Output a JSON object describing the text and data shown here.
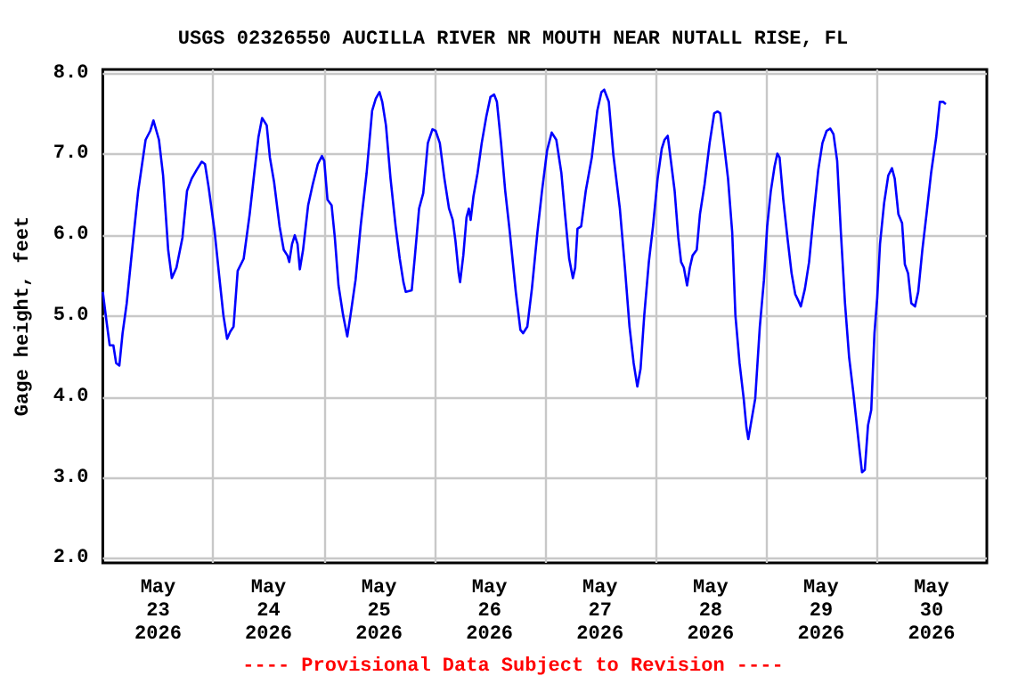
{
  "chart_data": {
    "type": "line",
    "title": "USGS 02326550 AUCILLA RIVER NR MOUTH NEAR NUTALL RISE, FL",
    "ylabel": "Gage height, feet",
    "annotations": [
      "---- Provisional Data Subject to Revision ----"
    ],
    "xlim": [
      "2026-05-23T00:00",
      "2026-05-31T00:00"
    ],
    "xticks": [
      {
        "value": "2026-05-23T12:00",
        "label": "May\n23\n2026"
      },
      {
        "value": "2026-05-24T00:00",
        "label": null
      },
      {
        "value": "2026-05-24T12:00",
        "label": "May\n24\n2026"
      },
      {
        "value": "2026-05-25T00:00",
        "label": null
      },
      {
        "value": "2026-05-25T12:00",
        "label": "May\n25\n2026"
      },
      {
        "value": "2026-05-26T00:00",
        "label": null
      },
      {
        "value": "2026-05-26T12:00",
        "label": "May\n26\n2026"
      },
      {
        "value": "2026-05-27T00:00",
        "label": null
      },
      {
        "value": "2026-05-27T12:00",
        "label": "May\n27\n2026"
      },
      {
        "value": "2026-05-28T00:00",
        "label": null
      },
      {
        "value": "2026-05-28T12:00",
        "label": "May\n28\n2026"
      },
      {
        "value": "2026-05-29T00:00",
        "label": null
      },
      {
        "value": "2026-05-29T12:00",
        "label": "May\n29\n2026"
      },
      {
        "value": "2026-05-30T00:00",
        "label": null
      },
      {
        "value": "2026-05-30T12:00",
        "label": "May\n30\n2026"
      }
    ],
    "ylim": [
      1.95,
      8.05
    ],
    "yticks": [
      {
        "value": 2,
        "label": "2.0"
      },
      {
        "value": 3,
        "label": "3.0"
      },
      {
        "value": 4,
        "label": "4.0"
      },
      {
        "value": 5,
        "label": "5.0"
      },
      {
        "value": 6,
        "label": "6.0"
      },
      {
        "value": 7,
        "label": "7.0"
      },
      {
        "value": 8,
        "label": "8.0"
      }
    ],
    "grid": true,
    "marker": "none",
    "line_style": "solid",
    "series": [
      {
        "color": "#0000ff",
        "x": [
          "2026-05-23T00:00",
          "2026-05-23T00:48",
          "2026-05-23T01:30",
          "2026-05-23T02:18",
          "2026-05-23T02:54",
          "2026-05-23T03:36",
          "2026-05-23T04:18",
          "2026-05-23T05:12",
          "2026-05-23T06:30",
          "2026-05-23T07:42",
          "2026-05-23T09:18",
          "2026-05-23T10:18",
          "2026-05-23T11:00",
          "2026-05-23T12:12",
          "2026-05-23T13:06",
          "2026-05-23T14:12",
          "2026-05-23T15:00",
          "2026-05-23T16:00",
          "2026-05-23T17:18",
          "2026-05-23T18:18",
          "2026-05-23T19:18",
          "2026-05-23T20:24",
          "2026-05-23T21:30",
          "2026-05-23T22:12",
          "2026-05-23T23:00",
          "2026-05-24T00:18",
          "2026-05-24T01:18",
          "2026-05-24T02:12",
          "2026-05-24T03:00",
          "2026-05-24T03:42",
          "2026-05-24T04:24",
          "2026-05-24T05:18",
          "2026-05-24T06:36",
          "2026-05-24T07:54",
          "2026-05-24T08:54",
          "2026-05-24T09:48",
          "2026-05-24T10:36",
          "2026-05-24T11:36",
          "2026-05-24T12:18",
          "2026-05-24T13:12",
          "2026-05-24T14:24",
          "2026-05-24T15:18",
          "2026-05-24T16:06",
          "2026-05-24T16:30",
          "2026-05-24T17:06",
          "2026-05-24T17:42",
          "2026-05-24T18:18",
          "2026-05-24T18:48",
          "2026-05-24T19:30",
          "2026-05-24T20:36",
          "2026-05-24T21:36",
          "2026-05-24T22:42",
          "2026-05-24T23:36",
          "2026-05-25T00:06",
          "2026-05-25T00:48",
          "2026-05-25T01:42",
          "2026-05-25T02:24",
          "2026-05-25T03:12",
          "2026-05-25T04:12",
          "2026-05-25T05:06",
          "2026-05-25T05:48",
          "2026-05-25T06:54",
          "2026-05-25T08:00",
          "2026-05-25T09:18",
          "2026-05-25T10:30",
          "2026-05-25T11:18",
          "2026-05-25T12:06",
          "2026-05-25T12:42",
          "2026-05-25T13:30",
          "2026-05-25T14:30",
          "2026-05-25T15:36",
          "2026-05-25T16:30",
          "2026-05-25T17:18",
          "2026-05-25T17:48",
          "2026-05-25T19:06",
          "2026-05-25T19:48",
          "2026-05-25T20:42",
          "2026-05-25T21:36",
          "2026-05-25T22:36",
          "2026-05-25T23:36",
          "2026-05-26T00:18",
          "2026-05-26T01:12",
          "2026-05-26T02:12",
          "2026-05-26T03:12",
          "2026-05-26T04:00",
          "2026-05-26T04:36",
          "2026-05-26T05:18",
          "2026-05-26T05:36",
          "2026-05-26T06:18",
          "2026-05-26T07:00",
          "2026-05-26T07:30",
          "2026-05-26T07:54",
          "2026-05-26T08:30",
          "2026-05-26T09:24",
          "2026-05-26T10:18",
          "2026-05-26T11:18",
          "2026-05-26T12:12",
          "2026-05-26T13:00",
          "2026-05-26T13:36",
          "2026-05-26T14:30",
          "2026-05-26T15:24",
          "2026-05-26T16:24",
          "2026-05-26T17:42",
          "2026-05-26T18:42",
          "2026-05-26T19:18",
          "2026-05-26T20:12",
          "2026-05-26T21:12",
          "2026-05-26T22:24",
          "2026-05-26T23:24",
          "2026-05-27T00:30",
          "2026-05-27T01:30",
          "2026-05-27T02:30",
          "2026-05-27T03:36",
          "2026-05-27T04:24",
          "2026-05-27T05:18",
          "2026-05-27T06:06",
          "2026-05-27T06:36",
          "2026-05-27T07:06",
          "2026-05-27T07:54",
          "2026-05-27T08:54",
          "2026-05-27T10:12",
          "2026-05-27T11:24",
          "2026-05-27T12:18",
          "2026-05-27T12:54",
          "2026-05-27T13:54",
          "2026-05-27T14:54",
          "2026-05-27T16:18",
          "2026-05-27T17:24",
          "2026-05-27T18:24",
          "2026-05-27T19:18",
          "2026-05-27T20:06",
          "2026-05-27T20:48",
          "2026-05-27T21:36",
          "2026-05-27T22:36",
          "2026-05-27T23:30",
          "2026-05-28T00:30",
          "2026-05-28T01:24",
          "2026-05-28T02:00",
          "2026-05-28T02:42",
          "2026-05-28T03:18",
          "2026-05-28T04:12",
          "2026-05-28T05:00",
          "2026-05-28T05:36",
          "2026-05-28T06:12",
          "2026-05-28T06:54",
          "2026-05-28T07:30",
          "2026-05-28T08:06",
          "2026-05-28T09:00",
          "2026-05-28T09:42",
          "2026-05-28T10:42",
          "2026-05-28T11:48",
          "2026-05-28T12:48",
          "2026-05-28T13:30",
          "2026-05-28T14:06",
          "2026-05-28T14:54",
          "2026-05-28T15:48",
          "2026-05-28T16:42",
          "2026-05-28T17:24",
          "2026-05-28T18:18",
          "2026-05-28T19:12",
          "2026-05-28T19:48",
          "2026-05-28T20:12",
          "2026-05-28T20:42",
          "2026-05-28T21:42",
          "2026-05-28T22:42",
          "2026-05-28T23:36",
          "2026-05-29T00:18",
          "2026-05-29T01:06",
          "2026-05-29T01:54",
          "2026-05-29T02:30",
          "2026-05-29T03:00",
          "2026-05-29T03:48",
          "2026-05-29T04:42",
          "2026-05-29T05:36",
          "2026-05-29T06:24",
          "2026-05-29T07:00",
          "2026-05-29T07:36",
          "2026-05-29T08:30",
          "2026-05-29T09:24",
          "2026-05-29T10:24",
          "2026-05-29T11:24",
          "2026-05-29T12:18",
          "2026-05-29T13:12",
          "2026-05-29T14:00",
          "2026-05-29T14:42",
          "2026-05-29T15:30",
          "2026-05-29T16:18",
          "2026-05-29T17:12",
          "2026-05-29T18:06",
          "2026-05-29T19:00",
          "2026-05-29T19:42",
          "2026-05-29T20:24",
          "2026-05-29T20:54",
          "2026-05-29T21:30",
          "2026-05-29T22:12",
          "2026-05-29T22:54",
          "2026-05-29T23:36",
          "2026-05-30T00:12",
          "2026-05-30T00:48",
          "2026-05-30T01:42",
          "2026-05-30T02:36",
          "2026-05-30T03:24",
          "2026-05-30T04:00",
          "2026-05-30T04:48",
          "2026-05-30T05:36",
          "2026-05-30T06:12",
          "2026-05-30T06:54",
          "2026-05-30T07:36",
          "2026-05-30T08:24",
          "2026-05-30T09:06",
          "2026-05-30T10:00",
          "2026-05-30T10:54",
          "2026-05-30T11:54",
          "2026-05-30T13:00",
          "2026-05-30T13:48",
          "2026-05-30T14:30",
          "2026-05-30T15:06"
        ],
        "values": [
          5.3,
          4.94,
          4.64,
          4.64,
          4.42,
          4.39,
          4.79,
          5.16,
          5.89,
          6.55,
          7.18,
          7.29,
          7.42,
          7.18,
          6.74,
          5.82,
          5.47,
          5.6,
          5.97,
          6.55,
          6.7,
          6.81,
          6.91,
          6.88,
          6.59,
          6.04,
          5.49,
          5.01,
          4.72,
          4.81,
          4.87,
          5.56,
          5.71,
          6.26,
          6.77,
          7.21,
          7.45,
          7.36,
          6.96,
          6.66,
          6.11,
          5.82,
          5.75,
          5.67,
          5.89,
          6.0,
          5.89,
          5.58,
          5.82,
          6.37,
          6.63,
          6.88,
          6.98,
          6.92,
          6.44,
          6.37,
          5.97,
          5.38,
          5.01,
          4.75,
          5.01,
          5.45,
          6.11,
          6.77,
          7.54,
          7.69,
          7.77,
          7.65,
          7.36,
          6.7,
          6.11,
          5.71,
          5.42,
          5.3,
          5.32,
          5.75,
          6.33,
          6.52,
          7.14,
          7.31,
          7.29,
          7.14,
          6.7,
          6.33,
          6.19,
          5.93,
          5.53,
          5.42,
          5.75,
          6.22,
          6.33,
          6.19,
          6.48,
          6.77,
          7.14,
          7.47,
          7.71,
          7.74,
          7.65,
          7.14,
          6.55,
          6.04,
          5.3,
          4.83,
          4.79,
          4.87,
          5.34,
          6.04,
          6.55,
          7.05,
          7.27,
          7.18,
          6.77,
          6.26,
          5.71,
          5.47,
          5.6,
          6.08,
          6.11,
          6.55,
          6.96,
          7.54,
          7.77,
          7.8,
          7.65,
          6.99,
          6.33,
          5.6,
          4.87,
          4.42,
          4.13,
          4.35,
          5.01,
          5.67,
          6.11,
          6.7,
          7.07,
          7.18,
          7.23,
          6.96,
          6.55,
          5.97,
          5.67,
          5.6,
          5.38,
          5.6,
          5.75,
          5.82,
          6.26,
          6.63,
          7.14,
          7.51,
          7.53,
          7.51,
          7.14,
          6.7,
          6.04,
          5.01,
          4.42,
          3.98,
          3.62,
          3.48,
          3.65,
          3.98,
          4.87,
          5.45,
          6.11,
          6.55,
          6.85,
          7.01,
          6.96,
          6.44,
          5.97,
          5.53,
          5.27,
          5.2,
          5.12,
          5.34,
          5.67,
          6.26,
          6.81,
          7.14,
          7.29,
          7.32,
          7.25,
          6.92,
          6.04,
          5.16,
          4.49,
          4.06,
          3.69,
          3.32,
          3.07,
          3.1,
          3.65,
          3.84,
          4.79,
          5.23,
          5.89,
          6.4,
          6.74,
          6.83,
          6.7,
          6.26,
          6.15,
          5.64,
          5.53,
          5.16,
          5.12,
          5.3,
          5.82,
          6.26,
          6.77,
          7.21,
          7.65,
          7.65,
          7.62
        ]
      }
    ]
  }
}
